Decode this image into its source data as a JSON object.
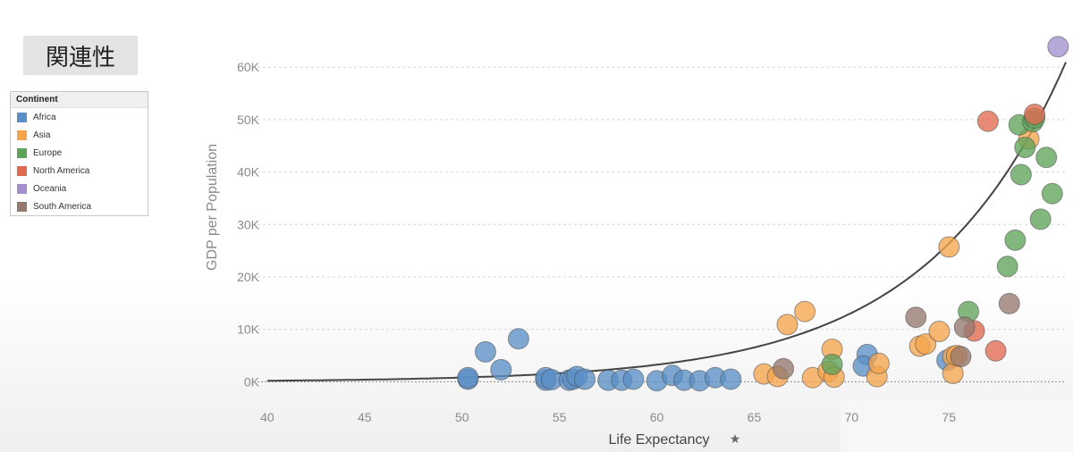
{
  "heading": "関連性",
  "legend": {
    "title": "Continent",
    "items": [
      {
        "label": "Africa",
        "color": "#5b8fc7"
      },
      {
        "label": "Asia",
        "color": "#f5a54b"
      },
      {
        "label": "Europe",
        "color": "#5fa35a"
      },
      {
        "label": "North America",
        "color": "#e06a4f"
      },
      {
        "label": "Oceania",
        "color": "#a38fcf"
      },
      {
        "label": "South America",
        "color": "#96796e"
      }
    ]
  },
  "chart_data": {
    "type": "scatter",
    "xlabel": "Life Expectancy",
    "ylabel": "GDP per Population",
    "xlim": [
      39.5,
      81
    ],
    "ylim": [
      -3000,
      66000
    ],
    "xticks": [
      40,
      45,
      50,
      55,
      60,
      65,
      70,
      75
    ],
    "xtick_labels": [
      "40",
      "45",
      "50",
      "55",
      "60",
      "65",
      "70",
      "75"
    ],
    "yticks": [
      0,
      10000,
      20000,
      30000,
      40000,
      50000,
      60000
    ],
    "ytick_labels": [
      "0K",
      "10K",
      "20K",
      "30K",
      "40K",
      "50K",
      "60K"
    ],
    "grid": true,
    "legend_position": "left",
    "trendline": "exponential",
    "series": [
      {
        "name": "Africa",
        "color": "#5b8fc7",
        "points": [
          [
            50.3,
            500
          ],
          [
            50.3,
            800
          ],
          [
            51.2,
            5700
          ],
          [
            52.0,
            2300
          ],
          [
            52.9,
            8200
          ],
          [
            54.3,
            300
          ],
          [
            54.3,
            800
          ],
          [
            54.6,
            400
          ],
          [
            55.5,
            300
          ],
          [
            55.7,
            500
          ],
          [
            55.9,
            1000
          ],
          [
            56.3,
            500
          ],
          [
            57.5,
            300
          ],
          [
            58.2,
            300
          ],
          [
            58.8,
            500
          ],
          [
            60.0,
            200
          ],
          [
            60.8,
            1200
          ],
          [
            61.4,
            300
          ],
          [
            62.2,
            200
          ],
          [
            63.0,
            800
          ],
          [
            63.8,
            500
          ],
          [
            70.8,
            5200
          ],
          [
            70.6,
            3000
          ],
          [
            74.9,
            4100
          ]
        ]
      },
      {
        "name": "Asia",
        "color": "#f5a54b",
        "points": [
          [
            65.5,
            1500
          ],
          [
            66.2,
            1000
          ],
          [
            66.7,
            10900
          ],
          [
            67.6,
            13400
          ],
          [
            68.0,
            800
          ],
          [
            68.8,
            2000
          ],
          [
            69.0,
            6200
          ],
          [
            69.1,
            900
          ],
          [
            71.3,
            1000
          ],
          [
            71.4,
            3500
          ],
          [
            73.5,
            6800
          ],
          [
            73.8,
            7200
          ],
          [
            74.5,
            9600
          ],
          [
            75.0,
            25700
          ],
          [
            75.2,
            4800
          ],
          [
            75.2,
            1600
          ],
          [
            75.4,
            5000
          ],
          [
            79.1,
            46300
          ]
        ]
      },
      {
        "name": "Europe",
        "color": "#5fa35a",
        "points": [
          [
            69.0,
            3300
          ],
          [
            76.0,
            13400
          ],
          [
            78.0,
            22000
          ],
          [
            78.4,
            27000
          ],
          [
            78.6,
            49000
          ],
          [
            78.7,
            39500
          ],
          [
            78.9,
            44700
          ],
          [
            79.3,
            49600
          ],
          [
            79.4,
            50300
          ],
          [
            79.7,
            31000
          ],
          [
            80.0,
            42800
          ],
          [
            80.3,
            35900
          ]
        ]
      },
      {
        "name": "North America",
        "color": "#e06a4f",
        "points": [
          [
            76.3,
            9700
          ],
          [
            77.0,
            49700
          ],
          [
            77.4,
            5900
          ],
          [
            79.4,
            51000
          ]
        ]
      },
      {
        "name": "Oceania",
        "color": "#a38fcf",
        "points": [
          [
            80.6,
            63900
          ]
        ]
      },
      {
        "name": "South America",
        "color": "#96796e",
        "points": [
          [
            66.5,
            2500
          ],
          [
            73.3,
            12300
          ],
          [
            75.6,
            4800
          ],
          [
            75.8,
            10400
          ],
          [
            78.1,
            14900
          ]
        ]
      }
    ]
  }
}
